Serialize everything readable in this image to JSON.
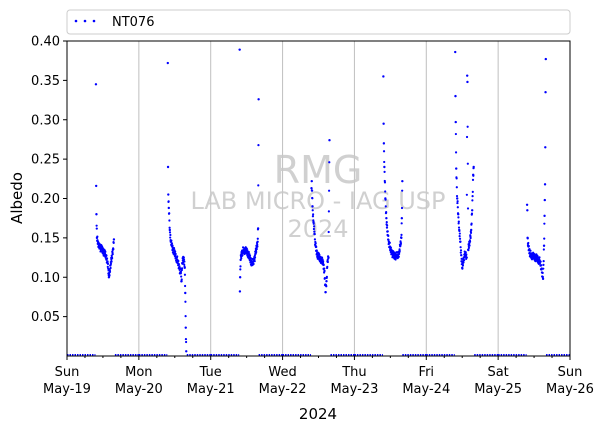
{
  "chart_data": {
    "type": "scatter",
    "xlabel": "2024",
    "ylabel": "Albedo",
    "ylim": [
      0.0,
      0.4
    ],
    "xlim": [
      "2024-05-19",
      "2024-05-26"
    ],
    "yticks": [
      "0.05",
      "0.10",
      "0.15",
      "0.20",
      "0.25",
      "0.30",
      "0.35",
      "0.40"
    ],
    "xticks": [
      {
        "day": "Sun",
        "date": "May-19"
      },
      {
        "day": "Mon",
        "date": "May-20"
      },
      {
        "day": "Tue",
        "date": "May-21"
      },
      {
        "day": "Wed",
        "date": "May-22"
      },
      {
        "day": "Thu",
        "date": "May-23"
      },
      {
        "day": "Fri",
        "date": "May-24"
      },
      {
        "day": "Sat",
        "date": "May-25"
      },
      {
        "day": "Sun",
        "date": "May-26"
      }
    ],
    "grid": "vertical",
    "legend_position": "top",
    "watermark": [
      "RMG",
      "LAB MICRO - IAG USP",
      "2024"
    ],
    "series": [
      {
        "name": "NT076",
        "color": "#0000ff",
        "points": [
          [
            "2024-05-19 09:40",
            0.345
          ],
          [
            "2024-05-19 09:45",
            0.216
          ],
          [
            "2024-05-19 09:50",
            0.18
          ],
          [
            "2024-05-19 10:00",
            0.15
          ],
          [
            "2024-05-19 10:20",
            0.145
          ],
          [
            "2024-05-19 10:40",
            0.14
          ],
          [
            "2024-05-19 11:00",
            0.138
          ],
          [
            "2024-05-19 11:30",
            0.136
          ],
          [
            "2024-05-19 12:00",
            0.134
          ],
          [
            "2024-05-19 12:30",
            0.13
          ],
          [
            "2024-05-19 13:00",
            0.128
          ],
          [
            "2024-05-19 13:30",
            0.12
          ],
          [
            "2024-05-19 14:00",
            0.1
          ],
          [
            "2024-05-19 14:30",
            0.115
          ],
          [
            "2024-05-19 15:00",
            0.125
          ],
          [
            "2024-05-19 15:20",
            0.135
          ],
          [
            "2024-05-19 15:40",
            0.148
          ],
          [
            "2024-05-20 09:40",
            0.372
          ],
          [
            "2024-05-20 09:45",
            0.24
          ],
          [
            "2024-05-20 09:50",
            0.205
          ],
          [
            "2024-05-20 10:00",
            0.188
          ],
          [
            "2024-05-20 10:20",
            0.16
          ],
          [
            "2024-05-20 10:40",
            0.145
          ],
          [
            "2024-05-20 11:00",
            0.14
          ],
          [
            "2024-05-20 11:30",
            0.135
          ],
          [
            "2024-05-20 12:00",
            0.13
          ],
          [
            "2024-05-20 12:30",
            0.125
          ],
          [
            "2024-05-20 13:00",
            0.12
          ],
          [
            "2024-05-20 13:30",
            0.112
          ],
          [
            "2024-05-20 14:00",
            0.105
          ],
          [
            "2024-05-20 14:15",
            0.095
          ],
          [
            "2024-05-20 14:30",
            0.118
          ],
          [
            "2024-05-20 15:00",
            0.125
          ],
          [
            "2024-05-20 15:20",
            0.112
          ],
          [
            "2024-05-20 15:30",
            0.08
          ],
          [
            "2024-05-20 15:40",
            0.036
          ],
          [
            "2024-05-20 15:50",
            0.006
          ],
          [
            "2024-05-21 09:40",
            0.389
          ],
          [
            "2024-05-21 09:45",
            0.082
          ],
          [
            "2024-05-21 09:50",
            0.1
          ],
          [
            "2024-05-21 10:00",
            0.122
          ],
          [
            "2024-05-21 10:20",
            0.13
          ],
          [
            "2024-05-21 10:40",
            0.133
          ],
          [
            "2024-05-21 11:00",
            0.134
          ],
          [
            "2024-05-21 11:30",
            0.134
          ],
          [
            "2024-05-21 12:00",
            0.133
          ],
          [
            "2024-05-21 12:30",
            0.13
          ],
          [
            "2024-05-21 13:00",
            0.125
          ],
          [
            "2024-05-21 13:30",
            0.12
          ],
          [
            "2024-05-21 14:00",
            0.118
          ],
          [
            "2024-05-21 14:30",
            0.122
          ],
          [
            "2024-05-21 15:00",
            0.13
          ],
          [
            "2024-05-21 15:20",
            0.138
          ],
          [
            "2024-05-21 15:40",
            0.145
          ],
          [
            "2024-05-21 15:50",
            0.162
          ],
          [
            "2024-05-21 16:00",
            0.326
          ],
          [
            "2024-05-22 09:40",
            0.213
          ],
          [
            "2024-05-22 09:45",
            0.222
          ],
          [
            "2024-05-22 09:50",
            0.21
          ],
          [
            "2024-05-22 10:00",
            0.19
          ],
          [
            "2024-05-22 10:20",
            0.17
          ],
          [
            "2024-05-22 10:40",
            0.155
          ],
          [
            "2024-05-22 11:00",
            0.14
          ],
          [
            "2024-05-22 11:30",
            0.13
          ],
          [
            "2024-05-22 12:00",
            0.126
          ],
          [
            "2024-05-22 12:30",
            0.124
          ],
          [
            "2024-05-22 13:00",
            0.122
          ],
          [
            "2024-05-22 13:30",
            0.118
          ],
          [
            "2024-05-22 14:00",
            0.108
          ],
          [
            "2024-05-22 14:20",
            0.081
          ],
          [
            "2024-05-22 14:40",
            0.095
          ],
          [
            "2024-05-22 15:00",
            0.12
          ],
          [
            "2024-05-22 15:20",
            0.125
          ],
          [
            "2024-05-22 15:40",
            0.274
          ],
          [
            "2024-05-23 09:40",
            0.355
          ],
          [
            "2024-05-23 09:45",
            0.295
          ],
          [
            "2024-05-23 09:50",
            0.27
          ],
          [
            "2024-05-23 10:00",
            0.24
          ],
          [
            "2024-05-23 10:20",
            0.2
          ],
          [
            "2024-05-23 10:40",
            0.175
          ],
          [
            "2024-05-23 11:00",
            0.158
          ],
          [
            "2024-05-23 11:30",
            0.145
          ],
          [
            "2024-05-23 12:00",
            0.136
          ],
          [
            "2024-05-23 12:30",
            0.131
          ],
          [
            "2024-05-23 13:00",
            0.128
          ],
          [
            "2024-05-23 13:30",
            0.127
          ],
          [
            "2024-05-23 14:00",
            0.127
          ],
          [
            "2024-05-23 14:30",
            0.128
          ],
          [
            "2024-05-23 15:00",
            0.132
          ],
          [
            "2024-05-23 15:20",
            0.14
          ],
          [
            "2024-05-23 15:40",
            0.15
          ],
          [
            "2024-05-23 15:50",
            0.175
          ],
          [
            "2024-05-23 16:00",
            0.222
          ],
          [
            "2024-05-24 09:40",
            0.386
          ],
          [
            "2024-05-24 09:45",
            0.33
          ],
          [
            "2024-05-24 09:50",
            0.297
          ],
          [
            "2024-05-24 10:00",
            0.238
          ],
          [
            "2024-05-24 10:20",
            0.2
          ],
          [
            "2024-05-24 10:40",
            0.18
          ],
          [
            "2024-05-24 11:00",
            0.16
          ],
          [
            "2024-05-24 11:20",
            0.145
          ],
          [
            "2024-05-24 11:40",
            0.128
          ],
          [
            "2024-05-24 12:00",
            0.112
          ],
          [
            "2024-05-24 12:30",
            0.125
          ],
          [
            "2024-05-24 13:00",
            0.13
          ],
          [
            "2024-05-24 13:30",
            0.125
          ],
          [
            "2024-05-24 13:40",
            0.356
          ],
          [
            "2024-05-24 13:45",
            0.348
          ],
          [
            "2024-05-24 14:00",
            0.135
          ],
          [
            "2024-05-24 14:30",
            0.145
          ],
          [
            "2024-05-24 15:00",
            0.16
          ],
          [
            "2024-05-24 15:20",
            0.185
          ],
          [
            "2024-05-24 15:40",
            0.23
          ],
          [
            "2024-05-24 15:50",
            0.24
          ],
          [
            "2024-05-25 09:40",
            0.192
          ],
          [
            "2024-05-25 09:45",
            0.185
          ],
          [
            "2024-05-25 09:50",
            0.15
          ],
          [
            "2024-05-25 10:00",
            0.14
          ],
          [
            "2024-05-25 10:20",
            0.135
          ],
          [
            "2024-05-25 10:40",
            0.13
          ],
          [
            "2024-05-25 11:00",
            0.128
          ],
          [
            "2024-05-25 11:30",
            0.127
          ],
          [
            "2024-05-25 12:00",
            0.126
          ],
          [
            "2024-05-25 12:30",
            0.125
          ],
          [
            "2024-05-25 13:00",
            0.124
          ],
          [
            "2024-05-25 13:30",
            0.122
          ],
          [
            "2024-05-25 14:00",
            0.12
          ],
          [
            "2024-05-25 14:30",
            0.11
          ],
          [
            "2024-05-25 15:00",
            0.098
          ],
          [
            "2024-05-25 15:20",
            0.14
          ],
          [
            "2024-05-25 15:30",
            0.178
          ],
          [
            "2024-05-25 15:35",
            0.198
          ],
          [
            "2024-05-25 15:40",
            0.218
          ],
          [
            "2024-05-25 15:45",
            0.265
          ],
          [
            "2024-05-25 15:50",
            0.335
          ],
          [
            "2024-05-25 15:55",
            0.377
          ]
        ]
      }
    ]
  }
}
